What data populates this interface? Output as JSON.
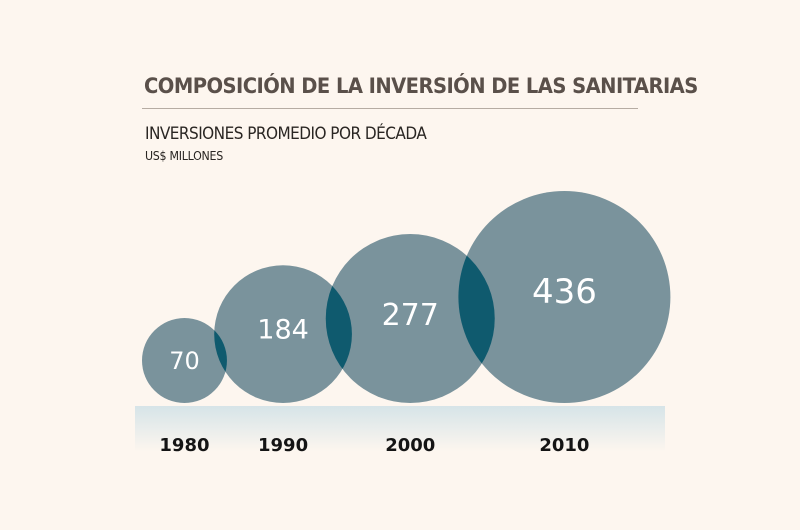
{
  "header": {
    "title": "COMPOSICIÓN DE LA INVERSIÓN DE LAS SANITARIAS",
    "subtitle": "INVERSIONES PROMEDIO POR DÉCADA",
    "units": "US$ MILLONES"
  },
  "colors": {
    "bubble": "#7a939c",
    "overlap": "#0f5a6e",
    "band_top": "#d6e4e8",
    "background": "#fdf6ef"
  },
  "chart_data": {
    "type": "bubble",
    "title": "COMPOSICIÓN DE LA INVERSIÓN DE LAS SANITARIAS",
    "subtitle": "INVERSIONES PROMEDIO POR DÉCADA",
    "ylabel": "US$ MILLONES",
    "categories": [
      "1980",
      "1990",
      "2000",
      "2010"
    ],
    "values": [
      70,
      184,
      277,
      436
    ],
    "value_labels": [
      "70",
      "184",
      "277",
      "436"
    ],
    "legend": "none",
    "grid": false
  }
}
